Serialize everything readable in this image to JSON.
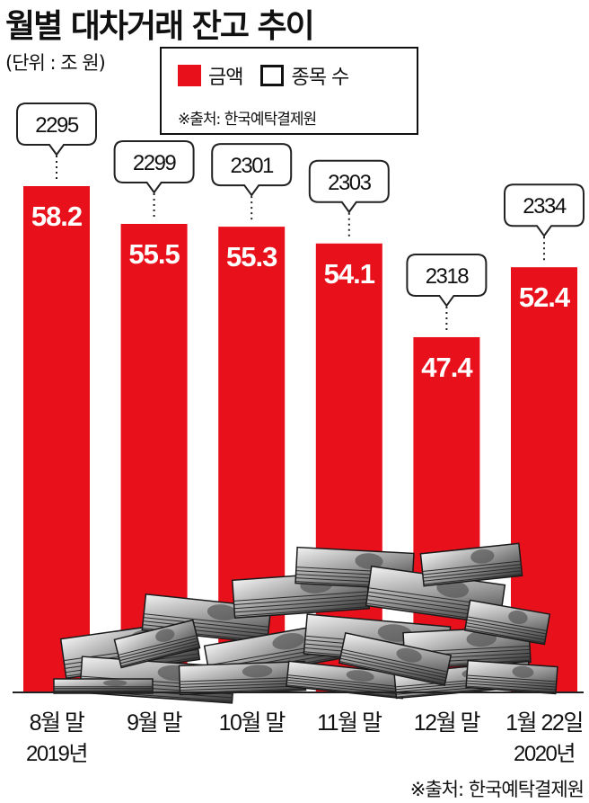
{
  "header": {
    "title": "월별 대차거래 잔고 추이",
    "unit": "(단위 : 조 원)"
  },
  "legend": {
    "amount_label": "금액",
    "count_label": "종목 수",
    "source": "※출처: 한국예탁결제원"
  },
  "footer": {
    "source": "※출처: 한국예탁결제원"
  },
  "colors": {
    "bar": "#e8101a",
    "text": "#111111",
    "bubble_border": "#222222"
  },
  "chart_data": {
    "type": "bar",
    "categories": [
      "8월 말",
      "9월 말",
      "10월 말",
      "11월 말",
      "12월 말",
      "1월 22일"
    ],
    "year_labels": [
      "2019년",
      "",
      "",
      "",
      "",
      "2020년"
    ],
    "series": [
      {
        "name": "금액",
        "values": [
          58.2,
          55.5,
          55.3,
          54.1,
          47.4,
          52.4
        ]
      },
      {
        "name": "종목 수",
        "values": [
          2295,
          2299,
          2301,
          2303,
          2318,
          2334
        ]
      }
    ],
    "value_labels": [
      "58.2",
      "55.5",
      "55.3",
      "54.1",
      "47.4",
      "52.4"
    ],
    "count_labels": [
      "2295",
      "2299",
      "2301",
      "2303",
      "2318",
      "2334"
    ],
    "ylabel": "",
    "xlabel": "",
    "grid": false,
    "legend_position": "top"
  }
}
